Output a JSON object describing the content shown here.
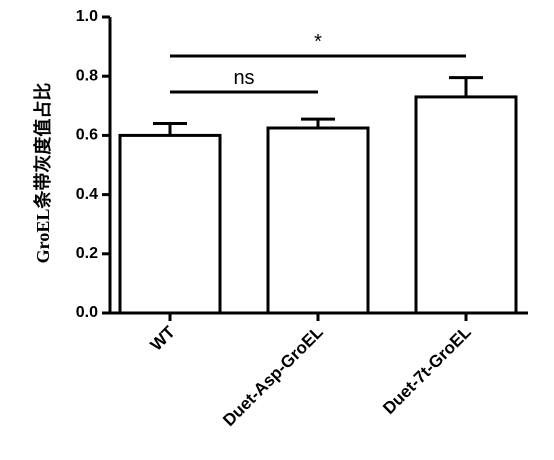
{
  "chart_data": {
    "type": "bar",
    "categories": [
      "WT",
      "Duet-Asp-GroEL",
      "Duet-7t-GroEL"
    ],
    "values": [
      0.6,
      0.625,
      0.73
    ],
    "errors": [
      0.04,
      0.03,
      0.065
    ],
    "ylabel": "GroEL条带灰度值占比",
    "xlabel": "",
    "title": "",
    "ylim": [
      0,
      1.0
    ],
    "yticks": [
      "0.0",
      "0.2",
      "0.4",
      "0.6",
      "0.8",
      "1.0"
    ],
    "ytick_values": [
      0,
      0.2,
      0.4,
      0.6,
      0.8,
      1.0
    ],
    "significance": [
      {
        "from": 0,
        "to": 1,
        "label": "ns"
      },
      {
        "from": 0,
        "to": 2,
        "label": "*"
      }
    ],
    "bar_fill": "#ffffff",
    "stroke_color": "#000000",
    "grid": false,
    "legend": "none"
  }
}
